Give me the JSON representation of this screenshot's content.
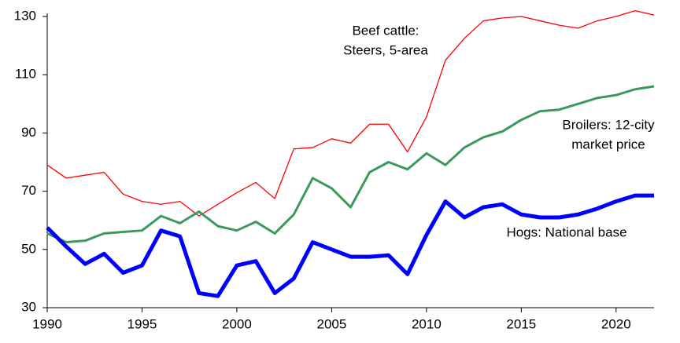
{
  "chart_data": {
    "type": "line",
    "x": [
      1990,
      1991,
      1992,
      1993,
      1994,
      1995,
      1996,
      1997,
      1998,
      1999,
      2000,
      2001,
      2002,
      2003,
      2004,
      2005,
      2006,
      2007,
      2008,
      2009,
      2010,
      2011,
      2012,
      2013,
      2014,
      2015,
      2016,
      2017,
      2018,
      2019,
      2020,
      2021,
      2022
    ],
    "series": [
      {
        "name": [
          "Beef cattle:",
          "Steers, 5-area"
        ],
        "color": "#ff0000",
        "line_width": 1.3,
        "values": [
          79,
          74.5,
          75.5,
          76.5,
          69,
          66.5,
          65.5,
          66.5,
          61.5,
          65.5,
          69.5,
          73,
          67.5,
          84.5,
          85,
          88,
          86.5,
          93,
          93,
          83.5,
          95.5,
          115,
          122.5,
          128.5,
          129.5,
          130,
          128.5,
          127,
          126,
          128.5,
          130,
          132,
          130.5
        ]
      },
      {
        "name": [
          "Broilers: 12-city",
          "market price"
        ],
        "color": "#3a9a5b",
        "line_width": 3,
        "values": [
          55.5,
          52.5,
          53,
          55.5,
          56,
          56.5,
          61.5,
          59,
          63,
          58,
          56.5,
          59.5,
          55.5,
          62,
          74.5,
          71,
          64.5,
          76.5,
          80,
          77.5,
          83,
          79,
          85,
          88.5,
          90.5,
          94.5,
          97.5,
          98,
          100,
          102,
          103,
          105,
          106
        ]
      },
      {
        "name": [
          "Hogs: National base"
        ],
        "color": "#0000ff",
        "line_width": 5,
        "values": [
          57.5,
          51,
          45,
          48.5,
          42,
          44.5,
          56.5,
          54.5,
          35,
          34,
          44.5,
          46,
          35,
          40,
          52.5,
          50,
          47.5,
          47.5,
          48,
          41.5,
          55,
          66.5,
          61,
          64.5,
          65.5,
          62,
          61,
          61,
          62,
          64,
          66.5,
          68.5,
          68.5
        ]
      }
    ],
    "xlim": [
      1990,
      2022
    ],
    "xticks": [
      1990,
      1995,
      2000,
      2005,
      2010,
      2015,
      2020
    ],
    "ylim": [
      30,
      130
    ],
    "yticks": [
      30,
      50,
      70,
      90,
      110,
      130
    ]
  }
}
